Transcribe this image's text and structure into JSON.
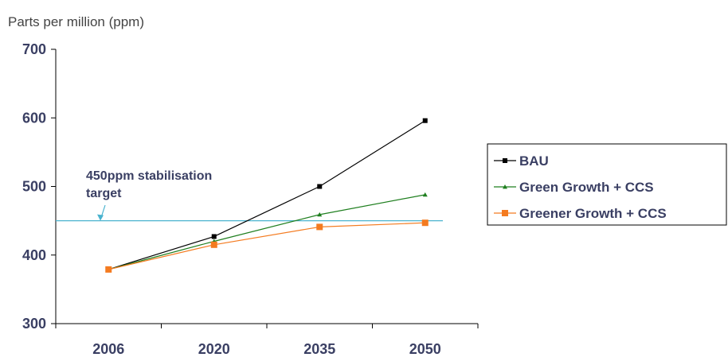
{
  "chart_data": {
    "type": "line",
    "title": "",
    "xlabel": "",
    "ylabel": "Parts per million (ppm)",
    "ylim": [
      300,
      700
    ],
    "yticks": [
      300,
      400,
      500,
      600,
      700
    ],
    "categories": [
      "2006",
      "2020",
      "2035",
      "2050"
    ],
    "series": [
      {
        "name": "BAU",
        "values": [
          379,
          427,
          500,
          596
        ],
        "color": "#000000",
        "marker": "square"
      },
      {
        "name": "Green Growth + CCS",
        "values": [
          379,
          420,
          459,
          488
        ],
        "color": "#1f7f1f",
        "marker": "triangle"
      },
      {
        "name": "Greener Growth + CCS",
        "values": [
          379,
          415,
          441,
          447
        ],
        "color": "#f47b20",
        "marker": "square"
      }
    ],
    "reference_line": {
      "value": 450,
      "color": "#4ab3cf",
      "label_line1": "450ppm stabilisation",
      "label_line2": "target"
    },
    "legend_position": "right",
    "grid": false
  }
}
